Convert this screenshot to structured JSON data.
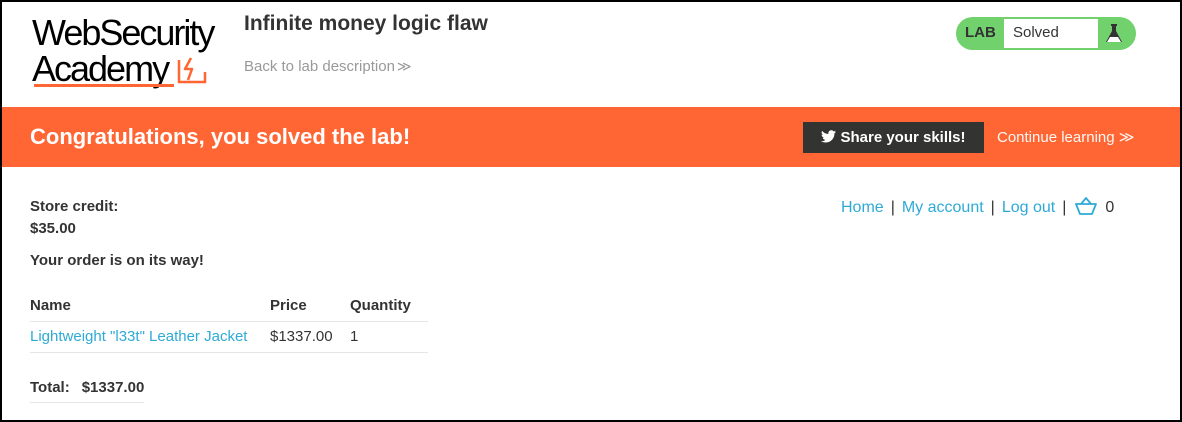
{
  "logo": {
    "line1": "WebSecurity",
    "line2": "Academy",
    "accent_color": "#ff6633"
  },
  "header": {
    "lab_title": "Infinite money logic flaw",
    "back_link": "Back to lab description",
    "back_chevron": "≫",
    "status": {
      "tag": "LAB",
      "value": "Solved",
      "color": "#70d16d",
      "icon": "flask-icon"
    }
  },
  "banner": {
    "message": "Congratulations, you solved the lab!",
    "share_label": "Share your skills!",
    "continue_label": "Continue learning",
    "continue_chevron": "≫",
    "color": "#ff6633"
  },
  "account": {
    "credit_label": "Store credit:",
    "credit_value": "$35.00",
    "order_message": "Your order is on its way!"
  },
  "nav": {
    "home": "Home",
    "my_account": "My account",
    "log_out": "Log out",
    "separator": "|",
    "cart_count": "0",
    "link_color": "#2eaad5"
  },
  "order_table": {
    "headers": [
      "Name",
      "Price",
      "Quantity"
    ],
    "rows": [
      {
        "name": "Lightweight \"l33t\" Leather Jacket",
        "price": "$1337.00",
        "quantity": "1"
      }
    ]
  },
  "total": {
    "label": "Total:",
    "value": "$1337.00"
  }
}
